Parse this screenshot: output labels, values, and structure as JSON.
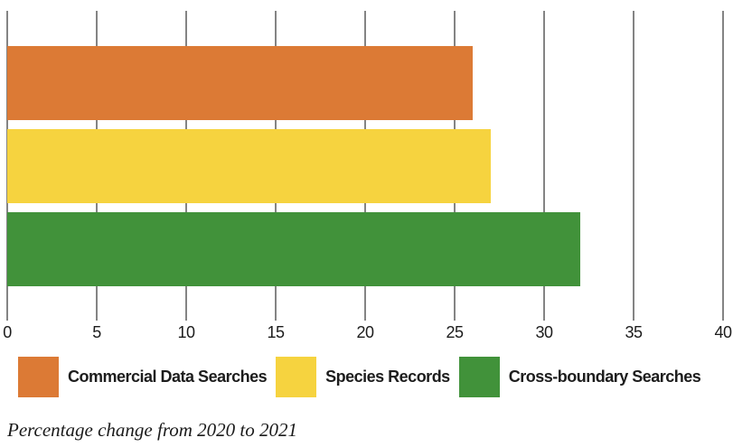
{
  "chart_data": {
    "type": "bar",
    "orientation": "horizontal",
    "caption": "Percentage change from 2020 to 2021",
    "categories": [
      "Commercial Data Searches",
      "Species Records",
      "Cross-boundary Searches"
    ],
    "values": [
      26,
      27,
      32
    ],
    "colors": [
      "#dc7a35",
      "#f6d33f",
      "#41923a"
    ],
    "xlim": [
      0,
      40
    ],
    "xticks": [
      0,
      5,
      10,
      15,
      20,
      25,
      30,
      35,
      40
    ],
    "grid": "vertical-on",
    "legend_position": "bottom-left",
    "gridline_color": "#848484",
    "tick_label_color": "#1c1c1c"
  }
}
